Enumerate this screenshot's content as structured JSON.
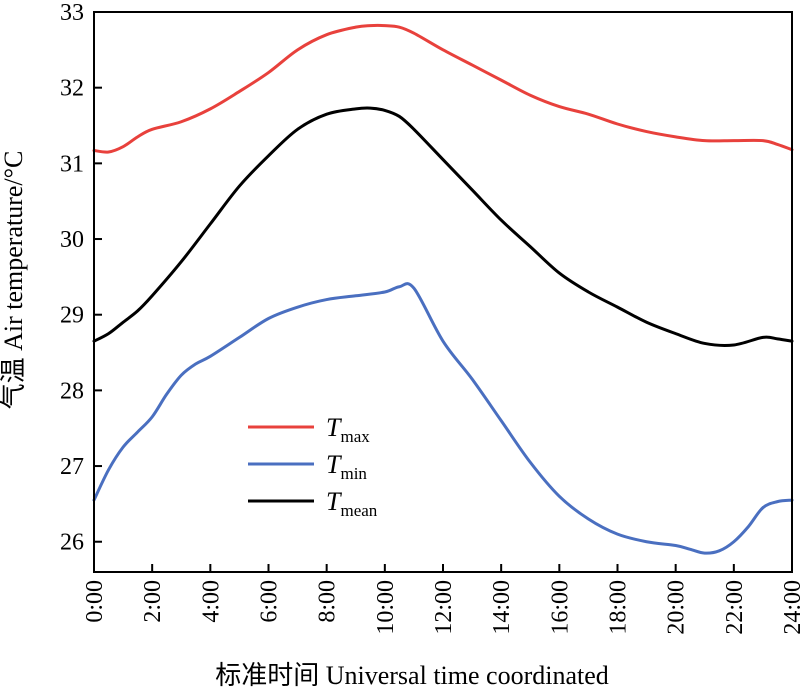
{
  "chart_data": {
    "type": "line",
    "xlabel": "标准时间 Universal time coordinated",
    "ylabel": "气温 Air temperature/°C",
    "xlim": [
      0,
      24
    ],
    "ylim": [
      25.6,
      33
    ],
    "grid": false,
    "legend_placement": "center-left",
    "x_ticks": [
      "0:00",
      "2:00",
      "4:00",
      "6:00",
      "8:00",
      "10:00",
      "12:00",
      "14:00",
      "16:00",
      "18:00",
      "20:00",
      "22:00",
      "24:00"
    ],
    "y_ticks": [
      "26",
      "27",
      "28",
      "29",
      "30",
      "31",
      "32",
      "33"
    ],
    "series": [
      {
        "name": "T",
        "subscript": "max",
        "color": "#e8413c",
        "x": [
          0,
          0.5,
          1,
          1.5,
          2,
          3,
          4,
          5,
          6,
          7,
          8,
          9,
          9.5,
          10,
          10.5,
          11,
          12,
          13,
          14,
          15,
          16,
          17,
          18,
          19,
          20,
          21,
          22,
          23,
          23.5,
          24
        ],
        "y": [
          31.17,
          31.15,
          31.22,
          31.35,
          31.45,
          31.55,
          31.72,
          31.95,
          32.2,
          32.5,
          32.7,
          32.8,
          32.82,
          32.82,
          32.8,
          32.72,
          32.5,
          32.3,
          32.1,
          31.9,
          31.75,
          31.65,
          31.52,
          31.42,
          31.35,
          31.3,
          31.3,
          31.3,
          31.25,
          31.18
        ]
      },
      {
        "name": "T",
        "subscript": "min",
        "color": "#4a6fc0",
        "x": [
          0,
          0.5,
          1,
          1.5,
          2,
          2.5,
          3,
          3.5,
          4,
          5,
          6,
          7,
          8,
          9,
          10,
          10.5,
          11,
          12,
          13,
          14,
          15,
          16,
          17,
          18,
          19,
          20,
          20.5,
          21,
          21.5,
          22,
          22.5,
          23,
          23.5,
          24
        ],
        "y": [
          26.55,
          26.95,
          27.25,
          27.45,
          27.65,
          27.95,
          28.2,
          28.35,
          28.45,
          28.7,
          28.95,
          29.1,
          29.2,
          29.25,
          29.3,
          29.37,
          29.35,
          28.65,
          28.15,
          27.6,
          27.05,
          26.6,
          26.3,
          26.1,
          26.0,
          25.95,
          25.9,
          25.85,
          25.88,
          26.0,
          26.2,
          26.45,
          26.53,
          26.55
        ]
      },
      {
        "name": "T",
        "subscript": "mean",
        "color": "#000000",
        "x": [
          0,
          0.5,
          1,
          1.5,
          2,
          3,
          4,
          5,
          6,
          7,
          8,
          9,
          9.5,
          10,
          10.5,
          11,
          12,
          13,
          14,
          15,
          16,
          17,
          18,
          19,
          20,
          21,
          22,
          23,
          23.5,
          24
        ],
        "y": [
          28.65,
          28.75,
          28.9,
          29.05,
          29.25,
          29.7,
          30.2,
          30.7,
          31.1,
          31.45,
          31.65,
          31.72,
          31.73,
          31.7,
          31.62,
          31.45,
          31.05,
          30.65,
          30.25,
          29.9,
          29.55,
          29.3,
          29.1,
          28.9,
          28.75,
          28.62,
          28.6,
          28.7,
          28.68,
          28.65
        ]
      }
    ]
  }
}
